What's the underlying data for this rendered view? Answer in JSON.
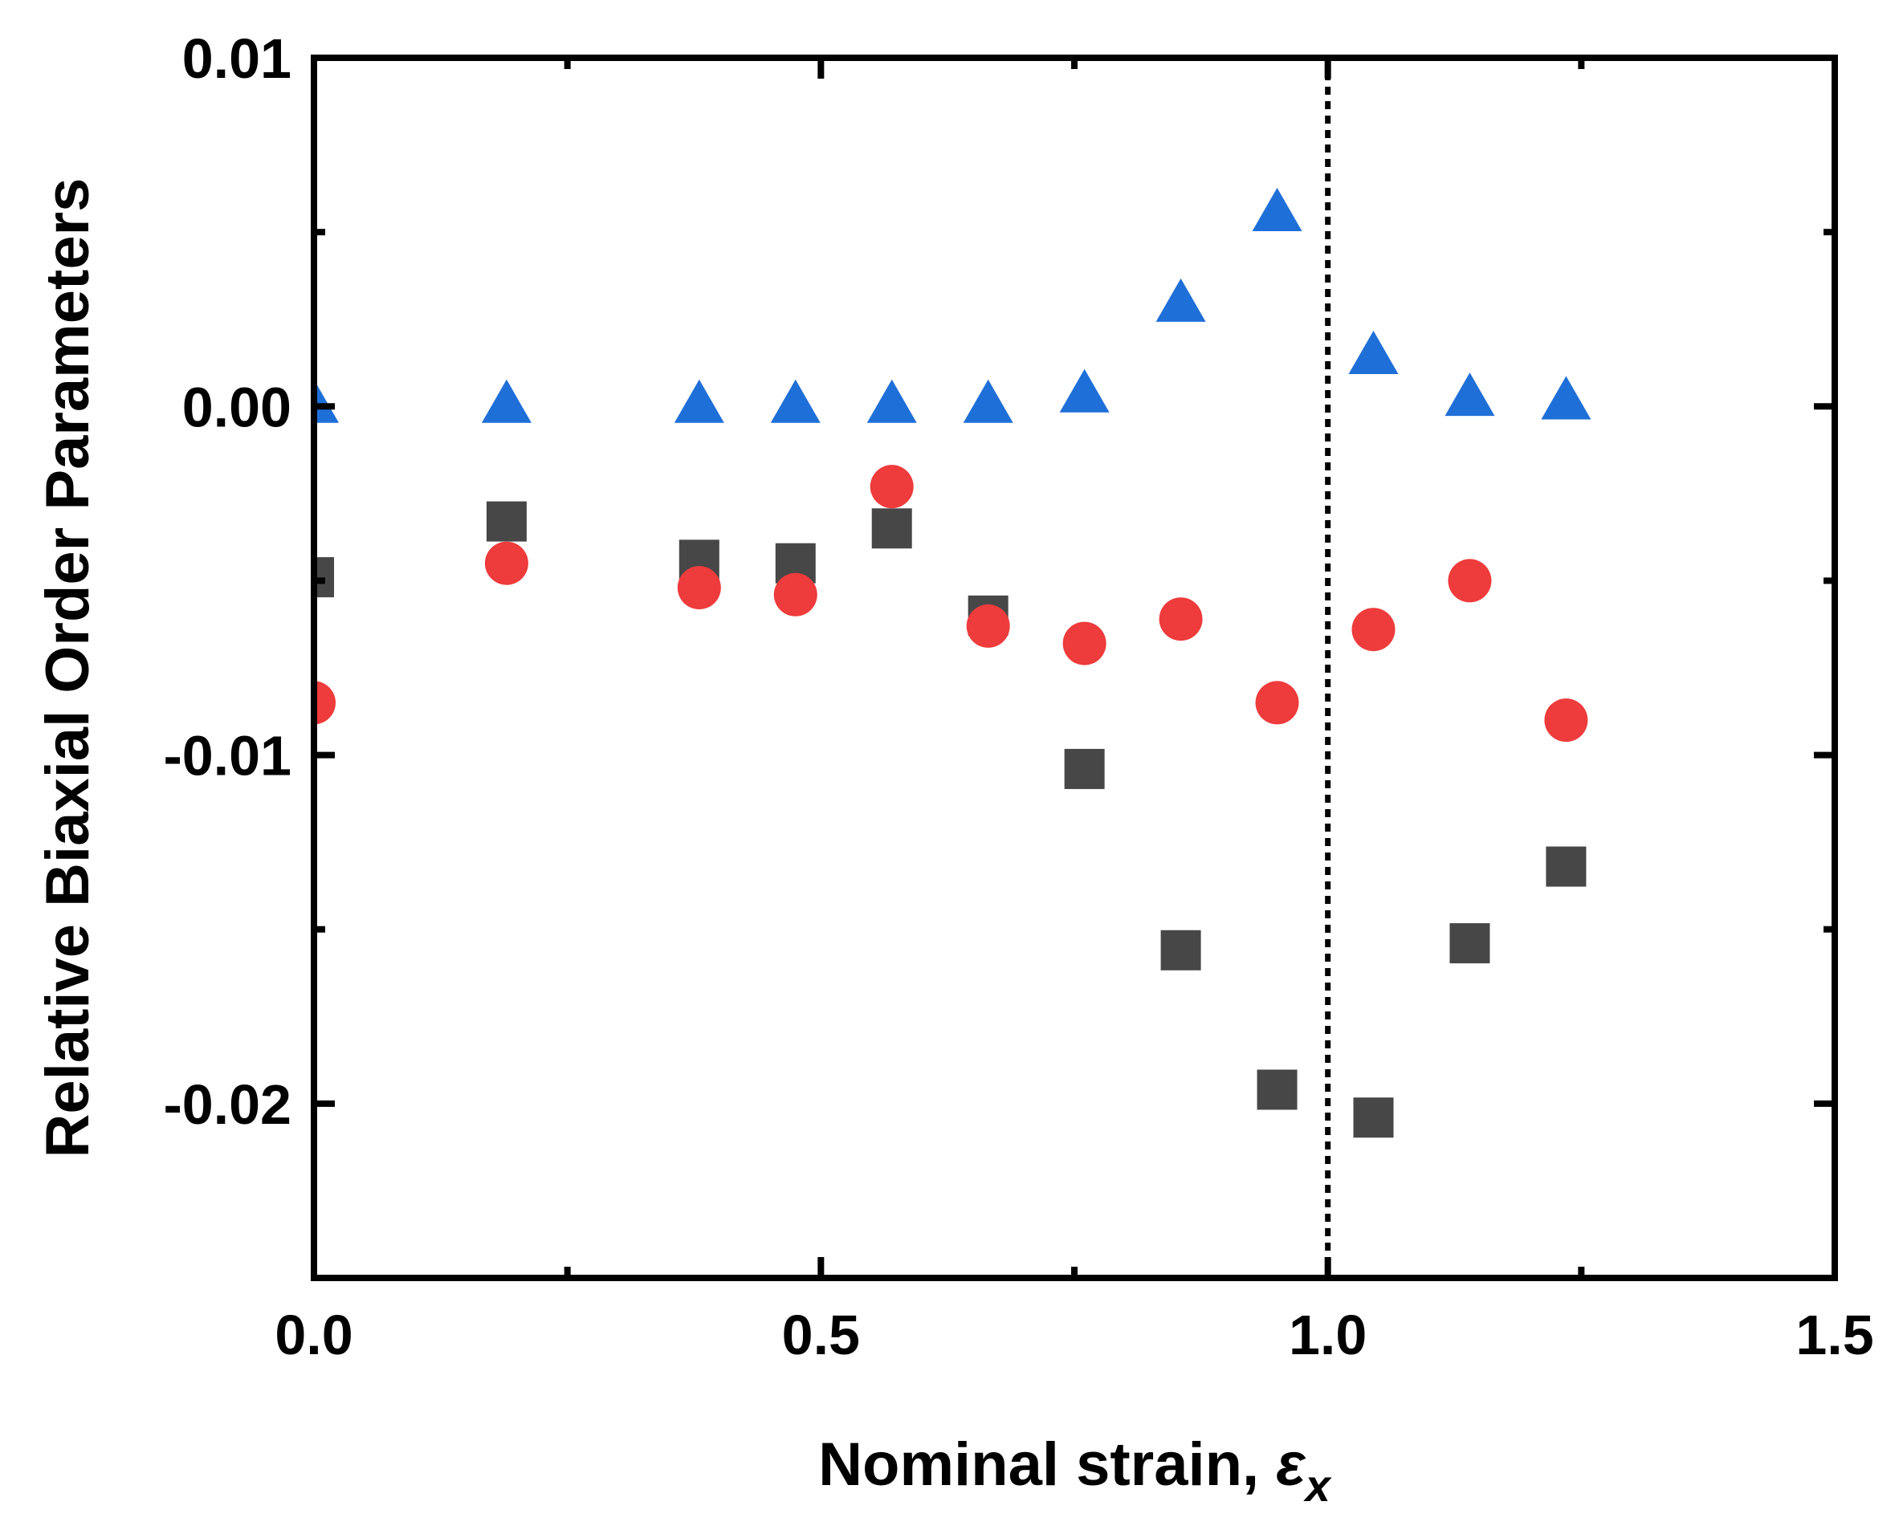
{
  "chart_data": {
    "type": "scatter",
    "title": "",
    "xlabel": "Nominal strain, ",
    "xlabel_symbol": "ε",
    "xlabel_subscript": "x",
    "ylabel": "Relative Biaxial Order Parameters",
    "xlim": [
      0.0,
      1.5
    ],
    "ylim": [
      -0.025,
      0.01
    ],
    "x_major_ticks": [
      0.0,
      0.5,
      1.0,
      1.5
    ],
    "x_minor_ticks": [
      0.25,
      0.75,
      1.25
    ],
    "x_tick_labels": [
      "0.0",
      "0.5",
      "1.0",
      "1.5"
    ],
    "y_major_ticks": [
      0.01,
      0.0,
      -0.01,
      -0.02
    ],
    "y_minor_ticks": [
      0.005,
      -0.005,
      -0.015
    ],
    "y_tick_labels": [
      "0.01",
      "0.00",
      "-0.01",
      "-0.02"
    ],
    "grid": false,
    "vertical_reference_line": {
      "x": 1.0,
      "style": "dotted",
      "color": "#000000"
    },
    "series": [
      {
        "marker": "square",
        "color": "#474747",
        "x": [
          0.0,
          0.19,
          0.38,
          0.475,
          0.57,
          0.665,
          0.76,
          0.855,
          0.95,
          1.045,
          1.14,
          1.235
        ],
        "y": [
          -0.0049,
          -0.0033,
          -0.0044,
          -0.0045,
          -0.0035,
          -0.006,
          -0.0104,
          -0.0156,
          -0.0196,
          -0.0204,
          -0.0154,
          -0.0132
        ]
      },
      {
        "marker": "circle",
        "color": "#ee3b3b",
        "x": [
          0.0,
          0.19,
          0.38,
          0.475,
          0.57,
          0.665,
          0.76,
          0.855,
          0.95,
          1.045,
          1.14,
          1.235
        ],
        "y": [
          -0.0085,
          -0.0045,
          -0.0052,
          -0.0054,
          -0.0023,
          -0.0063,
          -0.0068,
          -0.0061,
          -0.0085,
          -0.0064,
          -0.005,
          -0.009
        ]
      },
      {
        "marker": "triangle",
        "color": "#1f6fd8",
        "x": [
          0.0,
          0.19,
          0.38,
          0.475,
          0.57,
          0.665,
          0.76,
          0.855,
          0.95,
          1.045,
          1.14,
          1.235
        ],
        "y": [
          0.0,
          0.0,
          0.0,
          0.0,
          0.0,
          0.0,
          0.0003,
          0.0029,
          0.0055,
          0.0014,
          0.0002,
          0.0001
        ]
      }
    ]
  }
}
